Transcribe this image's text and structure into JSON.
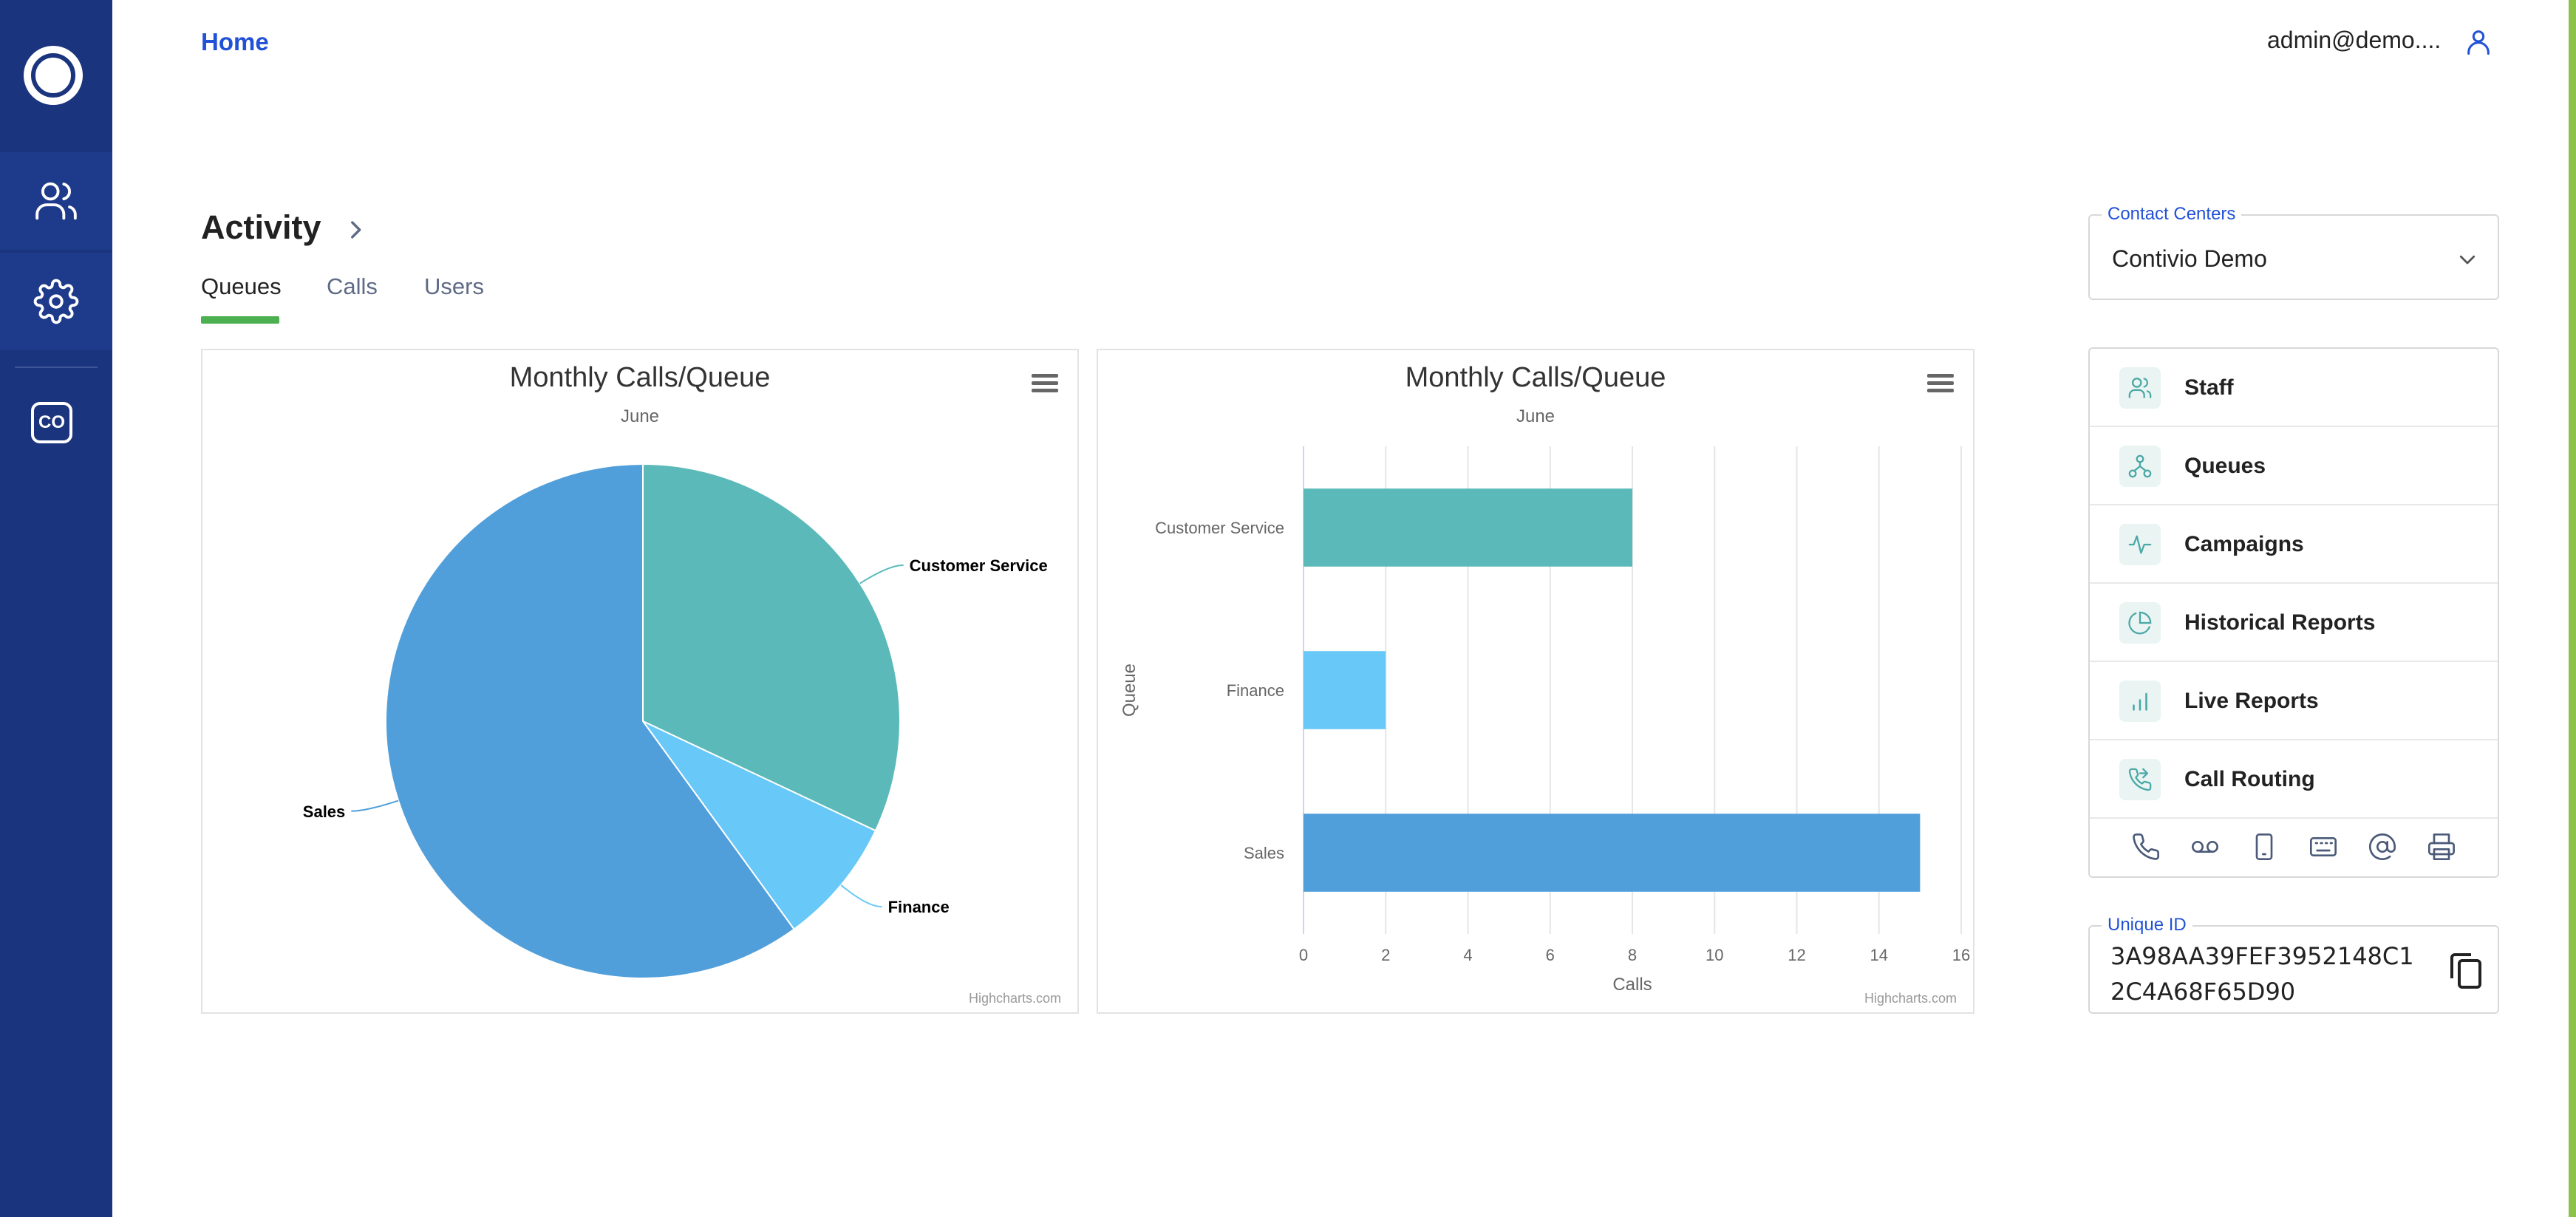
{
  "sidebar": {
    "items": [
      {
        "name": "users",
        "icon": "users-icon"
      },
      {
        "name": "settings",
        "icon": "gear-icon"
      }
    ],
    "badge": "CO"
  },
  "header": {
    "breadcrumb": "Home",
    "user_email": "admin@demo...."
  },
  "activity": {
    "title": "Activity",
    "tabs": [
      "Queues",
      "Calls",
      "Users"
    ],
    "active_tab": "Queues"
  },
  "chart_data": [
    {
      "type": "pie",
      "title": "Monthly Calls/Queue",
      "subtitle": "June",
      "categories": [
        "Customer Service",
        "Finance",
        "Sales"
      ],
      "values": [
        8,
        2,
        15
      ],
      "colors": [
        "#5bbab9",
        "#68c8f8",
        "#519fda"
      ],
      "credit": "Highcharts.com"
    },
    {
      "type": "bar",
      "title": "Monthly Calls/Queue",
      "subtitle": "June",
      "categories": [
        "Customer Service",
        "Finance",
        "Sales"
      ],
      "values": [
        8,
        2,
        15
      ],
      "colors": [
        "#5bbab9",
        "#68c8f8",
        "#519fda"
      ],
      "xlabel": "Calls",
      "ylabel": "Queue",
      "xlim": [
        0,
        16
      ],
      "xticks": [
        0,
        2,
        4,
        6,
        8,
        10,
        12,
        14,
        16
      ],
      "credit": "Highcharts.com"
    }
  ],
  "contact_centers": {
    "label": "Contact Centers",
    "value": "Contivio Demo"
  },
  "nav": {
    "items": [
      {
        "label": "Staff",
        "icon": "staff-icon"
      },
      {
        "label": "Queues",
        "icon": "queues-icon"
      },
      {
        "label": "Campaigns",
        "icon": "campaigns-icon"
      },
      {
        "label": "Historical Reports",
        "icon": "historical-reports-icon"
      },
      {
        "label": "Live Reports",
        "icon": "live-reports-icon"
      },
      {
        "label": "Call Routing",
        "icon": "call-routing-icon"
      }
    ],
    "bottom_icons": [
      "phone-icon",
      "voicemail-icon",
      "mobile-icon",
      "keyboard-icon",
      "at-sign-icon",
      "printer-icon"
    ]
  },
  "unique_id": {
    "label": "Unique ID",
    "value": "3A98AA39FEF3952148C12C4A68F65D90"
  },
  "colors": {
    "sidebar": "#1b347e",
    "accent": "#2151d6",
    "tab_underline": "#4caf50"
  }
}
